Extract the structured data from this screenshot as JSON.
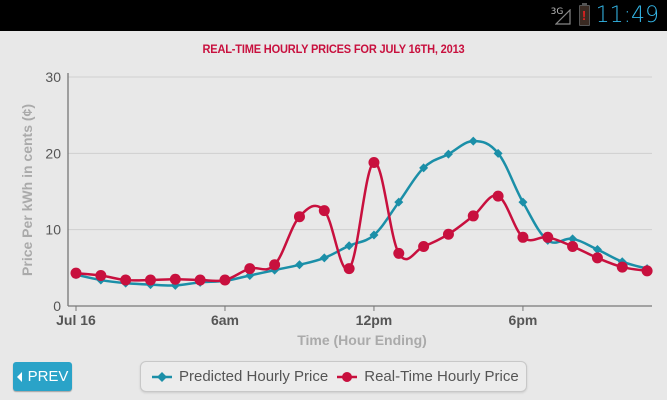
{
  "status_bar": {
    "network_label": "3G",
    "battery_icon": "battery-low-alert-icon",
    "time": "11:49"
  },
  "chart_title": "REAL-TIME HOURLY PRICES FOR JULY 16TH, 2013",
  "prev_button": {
    "label": "PREV",
    "icon": "caret-left-icon"
  },
  "legend": {
    "items": [
      {
        "label": "Predicted Hourly Price",
        "color": "#1b8fa8",
        "marker": "diamond"
      },
      {
        "label": "Real-Time Hourly Price",
        "color": "#c8103e",
        "marker": "circle"
      }
    ]
  },
  "chart_data": {
    "type": "line",
    "title": "REAL-TIME HOURLY PRICES FOR JULY 16TH, 2013",
    "xlabel": "Time (Hour Ending)",
    "ylabel": "Price Per kWh in cents (¢)",
    "ylim": [
      0,
      30
    ],
    "yticks": [
      0,
      10,
      20,
      30
    ],
    "xtick_labels": [
      {
        "hour": 0,
        "label": "Jul 16"
      },
      {
        "hour": 6,
        "label": "6am"
      },
      {
        "hour": 12,
        "label": "12pm"
      },
      {
        "hour": 18,
        "label": "6pm"
      }
    ],
    "grid": "horizontal",
    "legend_position": "bottom",
    "x": [
      0,
      1,
      2,
      3,
      4,
      5,
      6,
      7,
      8,
      9,
      10,
      11,
      12,
      13,
      14,
      15,
      16,
      17,
      18,
      19,
      20,
      21,
      22,
      23
    ],
    "series": [
      {
        "name": "Predicted Hourly Price",
        "color": "#1b8fa8",
        "marker": "diamond",
        "values": [
          4.1,
          3.4,
          3.0,
          2.8,
          2.7,
          3.1,
          3.3,
          4.0,
          4.7,
          5.4,
          6.3,
          7.9,
          9.3,
          13.6,
          18.1,
          19.9,
          21.6,
          20.0,
          13.6,
          8.6,
          8.8,
          7.4,
          5.8,
          4.9
        ]
      },
      {
        "name": "Real-Time Hourly Price",
        "color": "#c8103e",
        "marker": "circle",
        "values": [
          4.3,
          4.0,
          3.4,
          3.4,
          3.5,
          3.4,
          3.4,
          4.9,
          5.4,
          11.7,
          12.5,
          4.9,
          18.8,
          6.9,
          7.8,
          9.4,
          11.8,
          14.4,
          9.0,
          9.0,
          7.8,
          6.3,
          5.1,
          4.6
        ]
      }
    ]
  }
}
